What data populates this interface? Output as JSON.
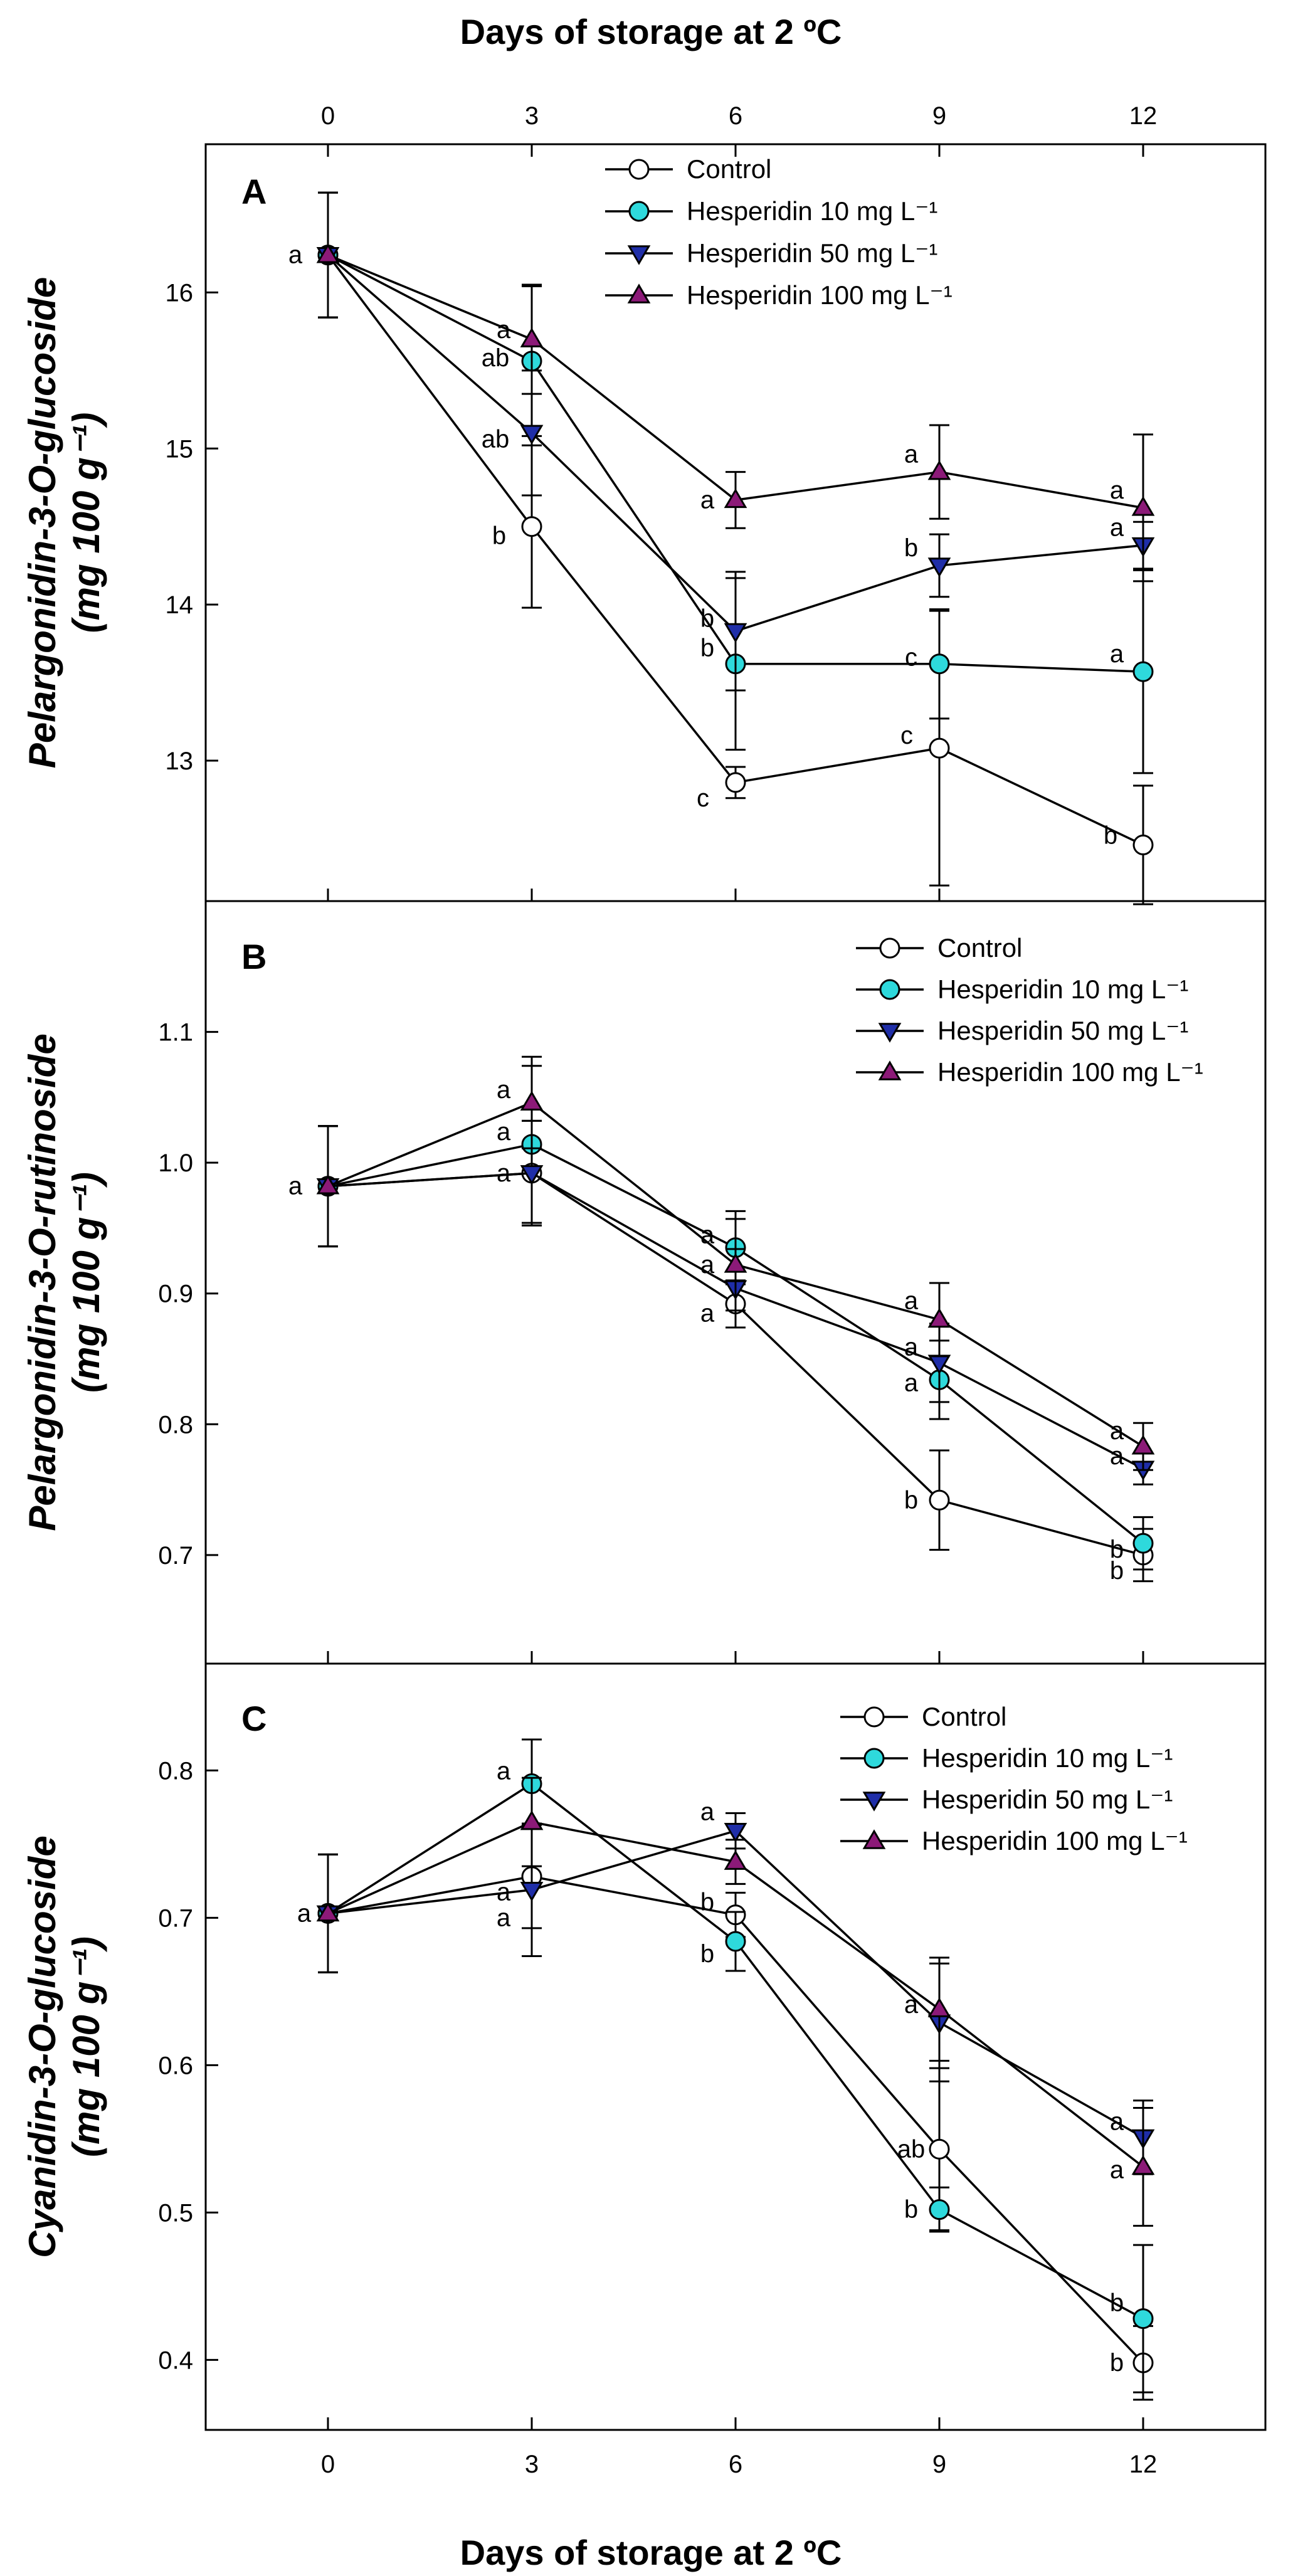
{
  "figure": {
    "x_label_top": "Days of storage at 2 ºC",
    "x_label_bottom": "Days of storage at 2 ºC"
  },
  "series_styles": [
    {
      "name": "Control",
      "marker": "circle",
      "fill": "#ffffff"
    },
    {
      "name": "Hesperidin 10 mg L⁻¹",
      "marker": "circle",
      "fill": "#2ed9dc"
    },
    {
      "name": "Hesperidin 50 mg L⁻¹",
      "marker": "triangle-down",
      "fill": "#1f2ea8"
    },
    {
      "name": "Hesperidin 100 mg L⁻¹",
      "marker": "triangle-up",
      "fill": "#8c1a78"
    }
  ],
  "chart_data": [
    {
      "type": "line",
      "panel": "A",
      "ylabel_line1": "Pelargonidin-3-O-glucoside",
      "ylabel_line2": "(mg 100 g⁻¹)",
      "x": [
        0,
        3,
        6,
        9,
        12
      ],
      "x_ticks": [
        "0",
        "3",
        "6",
        "9",
        "12"
      ],
      "xlim": [
        -1.8,
        13.8
      ],
      "ylim": [
        12.1,
        16.95
      ],
      "y_ticks": [
        "13",
        "14",
        "15",
        "16"
      ],
      "legend": [
        "Control",
        "Hesperidin 10 mg L⁻¹",
        "Hesperidin 50 mg L⁻¹",
        "Hesperidin 100 mg L⁻¹"
      ],
      "series": [
        {
          "name": "Control",
          "values": [
            16.24,
            14.5,
            12.86,
            13.08,
            12.46
          ],
          "err": [
            0.4,
            0.52,
            0.1,
            0.88,
            0.38
          ],
          "labels": [
            "a",
            "b",
            "c",
            "c",
            "b"
          ]
        },
        {
          "name": "Hesperidin 10 mg L⁻¹",
          "values": [
            16.24,
            15.56,
            13.62,
            13.62,
            13.57
          ],
          "err": [
            0.4,
            0.48,
            0.55,
            0.35,
            0.65
          ],
          "labels": [
            "",
            "ab",
            "b",
            "c",
            "a"
          ]
        },
        {
          "name": "Hesperidin 50 mg L⁻¹",
          "values": [
            16.24,
            15.1,
            13.83,
            14.25,
            14.38
          ],
          "err": [
            0.4,
            0.4,
            0.38,
            0.2,
            0.15
          ],
          "labels": [
            "",
            "ab",
            "b",
            "b",
            "a"
          ]
        },
        {
          "name": "Hesperidin 100 mg L⁻¹",
          "values": [
            16.24,
            15.7,
            14.67,
            14.85,
            14.62
          ],
          "err": [
            0.4,
            0.35,
            0.18,
            0.3,
            0.47
          ],
          "labels": [
            "",
            "a",
            "a",
            "a",
            "a"
          ]
        }
      ]
    },
    {
      "type": "line",
      "panel": "B",
      "ylabel_line1": "Pelargonidin-3-O-rutinoside",
      "ylabel_line2": "(mg 100 g⁻¹)",
      "x": [
        0,
        3,
        6,
        9,
        12
      ],
      "x_ticks": [
        "0",
        "3",
        "6",
        "9",
        "12"
      ],
      "xlim": [
        -1.8,
        13.8
      ],
      "ylim": [
        0.617,
        1.2
      ],
      "y_ticks": [
        "0.7",
        "0.8",
        "0.9",
        "1.0",
        "1.1"
      ],
      "legend": [
        "Control",
        "Hesperidin 10 mg L⁻¹",
        "Hesperidin 50 mg L⁻¹",
        "Hesperidin 100 mg L⁻¹"
      ],
      "series": [
        {
          "name": "Control",
          "values": [
            0.982,
            0.992,
            0.892,
            0.742,
            0.7
          ],
          "err": [
            0.046,
            0.04,
            0.018,
            0.038,
            0.02
          ],
          "labels": [
            "a",
            "a",
            "a",
            "b",
            "b"
          ]
        },
        {
          "name": "Hesperidin 10 mg L⁻¹",
          "values": [
            0.982,
            1.014,
            0.935,
            0.834,
            0.709
          ],
          "err": [
            0.046,
            0.06,
            0.028,
            0.03,
            0.02
          ],
          "labels": [
            "",
            "a",
            "a",
            "a",
            "b"
          ]
        },
        {
          "name": "Hesperidin 50 mg L⁻¹",
          "values": [
            0.982,
            0.992,
            0.904,
            0.847,
            0.766
          ],
          "err": [
            0.046,
            0.04,
            0.03,
            0.03,
            0.012
          ],
          "labels": [
            "",
            "",
            "",
            "a",
            "a"
          ]
        },
        {
          "name": "Hesperidin 100 mg L⁻¹",
          "values": [
            0.982,
            1.046,
            0.922,
            0.88,
            0.783
          ],
          "err": [
            0.046,
            0.035,
            0.035,
            0.028,
            0.018
          ],
          "labels": [
            "",
            "a",
            "a",
            "a",
            "a"
          ]
        }
      ]
    },
    {
      "type": "line",
      "panel": "C",
      "ylabel_line1": "Cyanidin-3-O-glucoside",
      "ylabel_line2": "(mg 100 g⁻¹)",
      "x": [
        0,
        3,
        6,
        9,
        12
      ],
      "x_ticks": [
        "0",
        "3",
        "6",
        "9",
        "12"
      ],
      "xlim": [
        -1.8,
        13.8
      ],
      "ylim": [
        0.3525,
        0.8725
      ],
      "y_ticks": [
        "0.4",
        "0.5",
        "0.6",
        "0.7",
        "0.8"
      ],
      "legend": [
        "Control",
        "Hesperidin 10 mg L⁻¹",
        "Hesperidin 50 mg L⁻¹",
        "Hesperidin 100 mg L⁻¹"
      ],
      "series": [
        {
          "name": "Control",
          "values": [
            0.703,
            0.728,
            0.702,
            0.543,
            0.398
          ],
          "err": [
            0.04,
            0.035,
            0.015,
            0.055,
            0.025
          ],
          "labels": [
            "a",
            "a",
            "b",
            "ab",
            "b"
          ]
        },
        {
          "name": "Hesperidin 10 mg L⁻¹",
          "values": [
            0.703,
            0.791,
            0.684,
            0.502,
            0.428
          ],
          "err": [
            0.04,
            0.03,
            0.02,
            0.015,
            0.05
          ],
          "labels": [
            "",
            "a",
            "b",
            "b",
            "b"
          ]
        },
        {
          "name": "Hesperidin 50 mg L⁻¹",
          "values": [
            0.703,
            0.719,
            0.759,
            0.629,
            0.551
          ],
          "err": [
            0.04,
            0.045,
            0.012,
            0.04,
            0.025
          ],
          "labels": [
            "",
            "a",
            "a",
            "a",
            "a"
          ]
        },
        {
          "name": "Hesperidin 100 mg L⁻¹",
          "values": [
            0.703,
            0.765,
            0.738,
            0.638,
            0.531
          ],
          "err": [
            0.04,
            0.03,
            0.015,
            0.035,
            0.04
          ],
          "labels": [
            "",
            "",
            "",
            "",
            "a"
          ]
        }
      ]
    }
  ]
}
